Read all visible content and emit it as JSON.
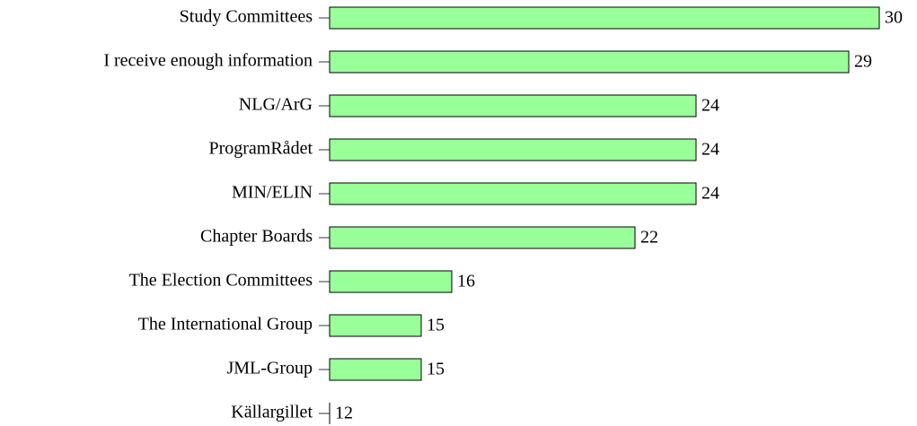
{
  "chart_data": {
    "type": "barh",
    "categories": [
      "Study Committees",
      "I receive enough information",
      "NLG/ArG",
      "ProgramRådet",
      "MIN/ELIN",
      "Chapter Boards",
      "The Election Committees",
      "The International Group",
      "JML-Group",
      "Källargillet"
    ],
    "values": [
      30,
      29,
      24,
      24,
      24,
      22,
      16,
      15,
      15,
      12
    ],
    "color": "#99ff99",
    "xlim": [
      12,
      30
    ]
  }
}
